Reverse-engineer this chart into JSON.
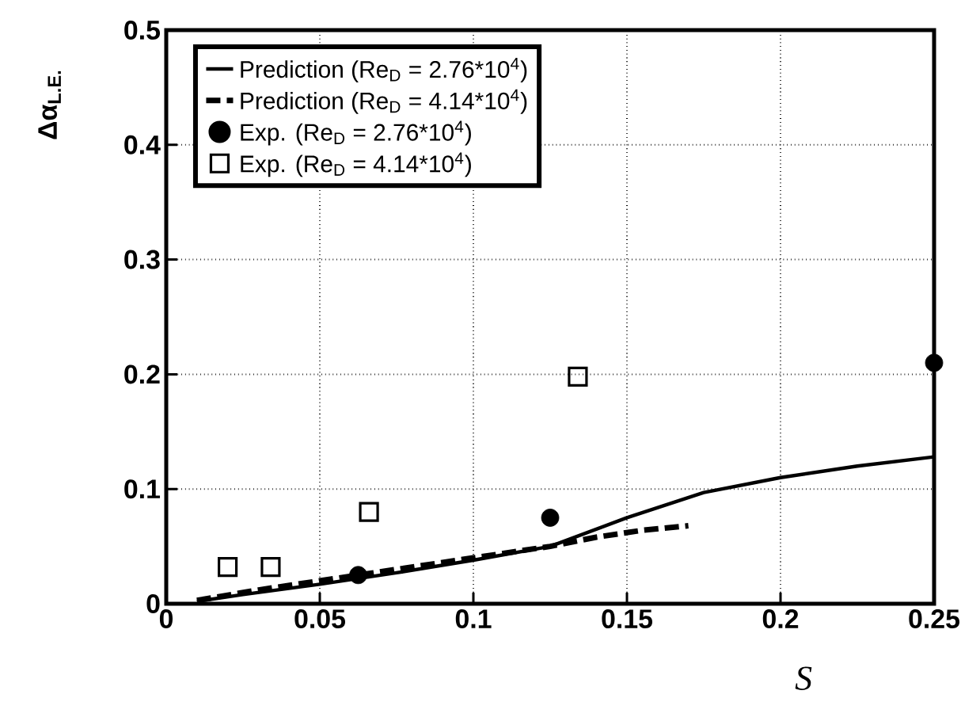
{
  "chart_data": {
    "type": "line",
    "xlabel": "S",
    "ylabel": "Δα$_{L.E.}$",
    "xlim": [
      0,
      0.25
    ],
    "ylim": [
      0,
      0.5
    ],
    "xticks": [
      {
        "value": 0,
        "label": "0"
      },
      0.05,
      0.1,
      0.15,
      0.2,
      0.25
    ],
    "yticks": [
      {
        "value": 0,
        "label": "0"
      },
      0.1,
      0.2,
      0.3,
      0.4,
      0.5
    ],
    "grid": true,
    "legend": "top left",
    "series": [
      {
        "name": "Prediction (Re$_{D}$ = 2.76*10$^{4}$)",
        "line_style": "solid",
        "marker": "none",
        "color": "#000000",
        "x": [
          0.01,
          0.025,
          0.05,
          0.075,
          0.1,
          0.125,
          0.15,
          0.175,
          0.2,
          0.225,
          0.25
        ],
        "values": [
          0.002,
          0.008,
          0.017,
          0.027,
          0.038,
          0.05,
          0.075,
          0.097,
          0.11,
          0.12,
          0.128
        ]
      },
      {
        "name": "Prediction (Re$_{D}$ = 4.14*10$^{4}$)",
        "line_style": "dashed",
        "marker": "none",
        "color": "#000000",
        "x": [
          0.01,
          0.03,
          0.05,
          0.075,
          0.1,
          0.125,
          0.14,
          0.155,
          0.17
        ],
        "values": [
          0.003,
          0.012,
          0.02,
          0.03,
          0.04,
          0.05,
          0.058,
          0.064,
          0.068
        ]
      },
      {
        "name": "Exp. (Re$_{D}$ = 2.76*10$^{4}$)",
        "type": "scatter",
        "marker": "circle",
        "color": "#000000",
        "x": [
          0.0625,
          0.125,
          0.25
        ],
        "values": [
          0.025,
          0.075,
          0.21
        ]
      },
      {
        "name": "Exp. (Re$_{D}$ = 4.14*10$^{4}$)",
        "type": "scatter",
        "marker": "square",
        "color": "#000000",
        "x": [
          0.02,
          0.034,
          0.066,
          0.134
        ],
        "values": [
          0.032,
          0.032,
          0.08,
          0.198
        ]
      }
    ]
  }
}
